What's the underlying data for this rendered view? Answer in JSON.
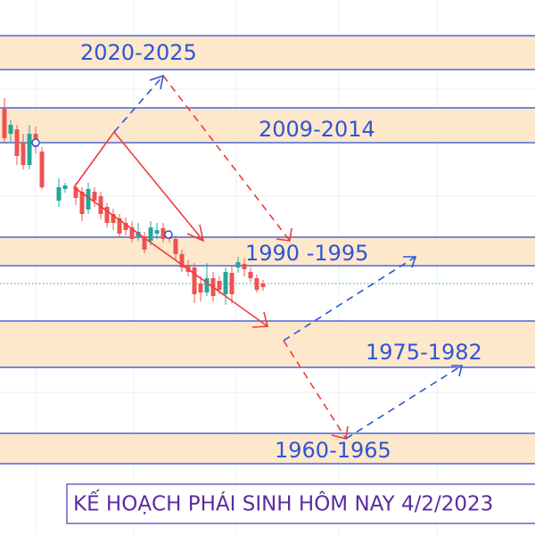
{
  "zones": [
    {
      "label": "2020-2025"
    },
    {
      "label": "2009-2014"
    },
    {
      "label": "1990 -1995"
    },
    {
      "label": "1975-1982"
    },
    {
      "label": "1960-1965"
    }
  ],
  "caption": "KẾ HOẠCH PHÁI SINH HÔM NAY 4/2/2023"
}
